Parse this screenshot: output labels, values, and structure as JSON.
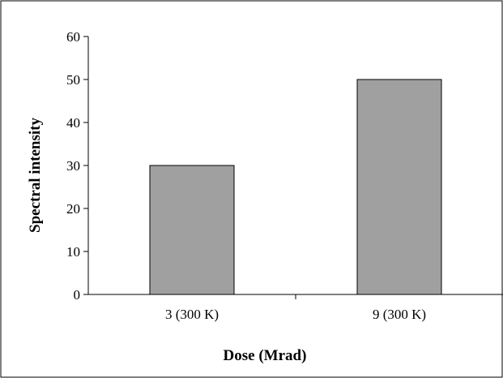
{
  "chart_data": {
    "type": "bar",
    "title": "",
    "xlabel": "Dose (Mrad)",
    "ylabel": "Spectral intensity",
    "categories": [
      "3 (300 K)",
      "9 (300 K)"
    ],
    "values": [
      30,
      50
    ],
    "ylim": [
      0,
      60
    ],
    "yticks": [
      0,
      10,
      20,
      30,
      40,
      50,
      60
    ],
    "grid": false,
    "legend": "none",
    "bar_color": "#a0a0a0",
    "bar_edge_color": "#000000",
    "frame_color": "#000000"
  }
}
